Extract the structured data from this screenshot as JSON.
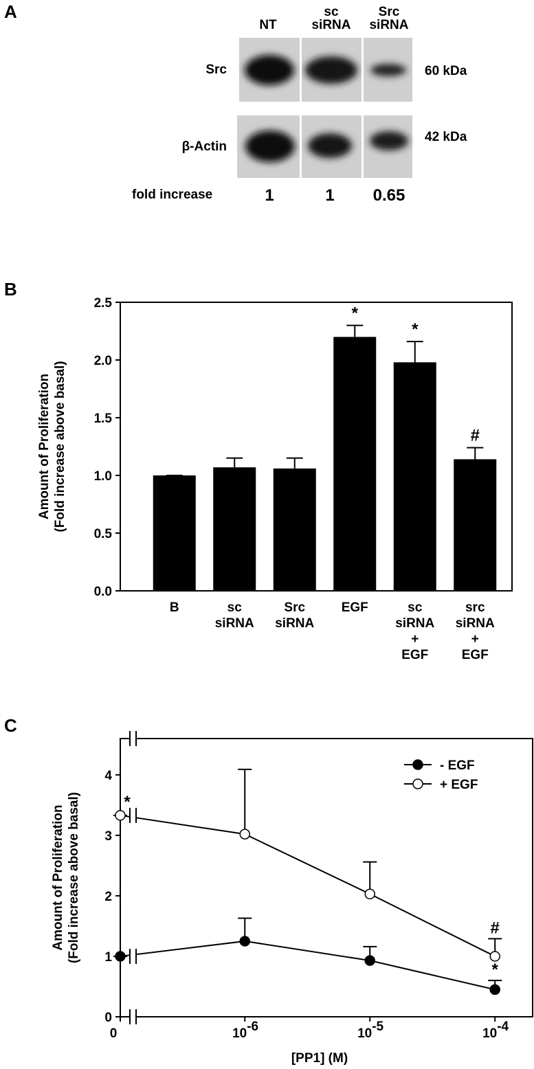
{
  "blot": {
    "label": "A",
    "lanes": [
      "NT",
      "sc\nsiRNA",
      "Src\nsiRNA"
    ],
    "rows": [
      {
        "label": "Src",
        "size": "60 kDa"
      },
      {
        "label": "β-Actin",
        "size": "42 kDa"
      }
    ],
    "fold_label": "fold increase",
    "fold_increase": [
      1,
      1,
      0.65
    ]
  },
  "chart_data": [
    {
      "type": "bar",
      "label": "B",
      "categories": [
        "B",
        "sc\nsiRNA",
        "Src\nsiRNA",
        "EGF",
        "sc\nsiRNA\n+\nEGF",
        "src\nsiRNA\n+\nEGF"
      ],
      "values": [
        1.0,
        1.07,
        1.06,
        2.2,
        1.98,
        1.14
      ],
      "errors": [
        0,
        0.08,
        0.09,
        0.1,
        0.18,
        0.1
      ],
      "annotations": [
        null,
        null,
        null,
        "*",
        "*",
        "#"
      ],
      "color": "#000000",
      "y_label": [
        "Amount of Proliferation",
        "(Fold increase above basal)"
      ],
      "ylim": [
        0,
        2.5
      ],
      "yticks": [
        {
          "value": 0,
          "label": "0.0"
        },
        0.5,
        {
          "value": 1,
          "label": "1.0"
        },
        1.5,
        {
          "value": 2,
          "label": "2.0"
        },
        2.5
      ]
    },
    {
      "type": "line",
      "label": "C",
      "x": [
        0,
        1e-06,
        1e-05,
        0.0001
      ],
      "xscale": "log",
      "x_break": true,
      "xlim": [
        1.3e-07,
        0.0002
      ],
      "xticks": [
        0,
        {
          "value": 1e-06,
          "label": "10",
          "exponent": "-6"
        },
        {
          "value": 1e-05,
          "label": "10",
          "exponent": "-5"
        },
        {
          "value": 0.0001,
          "label": "10",
          "exponent": "-4"
        }
      ],
      "ylim": [
        0,
        4.6
      ],
      "yticks": [
        0,
        1,
        2,
        3,
        4
      ],
      "x_label": "[PP1] (M)",
      "y_label": [
        "Amount of Proliferation",
        "(Fold increase above basal)"
      ],
      "legend": "upper right",
      "series": [
        {
          "name": "- EGF",
          "color": "#000000",
          "marker": "filled",
          "values": [
            1.0,
            1.25,
            0.93,
            0.45
          ],
          "errors": [
            0,
            0.38,
            0.23,
            0.15
          ],
          "annotations": [
            null,
            null,
            null,
            "*"
          ]
        },
        {
          "name": "+ EGF",
          "color": "#000000",
          "marker": "open",
          "values": [
            3.33,
            3.02,
            2.03,
            1.0
          ],
          "errors": [
            0,
            1.07,
            0.53,
            0.29
          ],
          "annotations": [
            "*",
            null,
            null,
            "#"
          ]
        }
      ]
    }
  ]
}
